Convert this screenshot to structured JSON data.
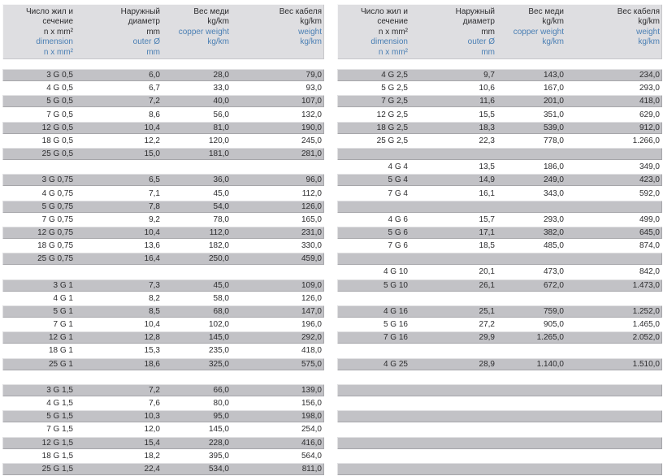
{
  "colors": {
    "row_gray": "#c2c2c6",
    "header_bg": "#dedee1",
    "text": "#2d2d2f",
    "accent_blue": "#4a7fb4"
  },
  "header": {
    "columns": [
      {
        "id": "dimension",
        "black": [
          "Число жил и",
          "сечение",
          "n x mm²"
        ],
        "blue": [
          "dimension",
          "n x mm²"
        ]
      },
      {
        "id": "outer-diameter",
        "black": [
          "Наружный",
          "диаметр",
          "mm"
        ],
        "blue": [
          "outer Ø",
          "mm"
        ]
      },
      {
        "id": "copper-weight",
        "black": [
          "Вес меди",
          "kg/km"
        ],
        "blue": [
          "copper weight",
          "kg/km"
        ]
      },
      {
        "id": "cable-weight",
        "black": [
          "Вес кабеля",
          "kg/km"
        ],
        "blue": [
          "weight",
          "kg/km"
        ]
      }
    ]
  },
  "tables": {
    "left": {
      "rows": [
        {
          "type": "data",
          "shade": "gray",
          "cells": [
            "3 G 0,5",
            "6,0",
            "28,0",
            "79,0"
          ]
        },
        {
          "type": "data",
          "shade": "white",
          "cells": [
            "4 G 0,5",
            "6,7",
            "33,0",
            "93,0"
          ]
        },
        {
          "type": "data",
          "shade": "gray",
          "cells": [
            "5 G 0,5",
            "7,2",
            "40,0",
            "107,0"
          ]
        },
        {
          "type": "data",
          "shade": "white",
          "cells": [
            "7 G 0,5",
            "8,6",
            "56,0",
            "132,0"
          ]
        },
        {
          "type": "data",
          "shade": "gray",
          "cells": [
            "12 G 0,5",
            "10,4",
            "81,0",
            "190,0"
          ]
        },
        {
          "type": "data",
          "shade": "white",
          "cells": [
            "18 G 0,5",
            "12,2",
            "120,0",
            "245,0"
          ]
        },
        {
          "type": "data",
          "shade": "gray",
          "cells": [
            "25 G 0,5",
            "15,0",
            "181,0",
            "281,0"
          ]
        },
        {
          "type": "spacer",
          "shade": "white"
        },
        {
          "type": "data",
          "shade": "gray",
          "cells": [
            "3 G 0,75",
            "6,5",
            "36,0",
            "96,0"
          ]
        },
        {
          "type": "data",
          "shade": "white",
          "cells": [
            "4 G 0,75",
            "7,1",
            "45,0",
            "112,0"
          ]
        },
        {
          "type": "data",
          "shade": "gray",
          "cells": [
            "5 G 0,75",
            "7,8",
            "54,0",
            "126,0"
          ]
        },
        {
          "type": "data",
          "shade": "white",
          "cells": [
            "7 G 0,75",
            "9,2",
            "78,0",
            "165,0"
          ]
        },
        {
          "type": "data",
          "shade": "gray",
          "cells": [
            "12 G 0,75",
            "10,4",
            "112,0",
            "231,0"
          ]
        },
        {
          "type": "data",
          "shade": "white",
          "cells": [
            "18 G 0,75",
            "13,6",
            "182,0",
            "330,0"
          ]
        },
        {
          "type": "data",
          "shade": "gray",
          "cells": [
            "25 G 0,75",
            "16,4",
            "250,0",
            "459,0"
          ]
        },
        {
          "type": "spacer",
          "shade": "white"
        },
        {
          "type": "data",
          "shade": "gray",
          "cells": [
            "3 G 1",
            "7,3",
            "45,0",
            "109,0"
          ]
        },
        {
          "type": "data",
          "shade": "white",
          "cells": [
            "4 G 1",
            "8,2",
            "58,0",
            "126,0"
          ]
        },
        {
          "type": "data",
          "shade": "gray",
          "cells": [
            "5 G 1",
            "8,5",
            "68,0",
            "147,0"
          ]
        },
        {
          "type": "data",
          "shade": "white",
          "cells": [
            "7 G 1",
            "10,4",
            "102,0",
            "196,0"
          ]
        },
        {
          "type": "data",
          "shade": "gray",
          "cells": [
            "12 G 1",
            "12,8",
            "145,0",
            "292,0"
          ]
        },
        {
          "type": "data",
          "shade": "white",
          "cells": [
            "18 G 1",
            "15,3",
            "235,0",
            "418,0"
          ]
        },
        {
          "type": "data",
          "shade": "gray",
          "cells": [
            "25 G 1",
            "18,6",
            "325,0",
            "575,0"
          ]
        },
        {
          "type": "spacer",
          "shade": "white"
        },
        {
          "type": "data",
          "shade": "gray",
          "cells": [
            "3 G 1,5",
            "7,2",
            "66,0",
            "139,0"
          ]
        },
        {
          "type": "data",
          "shade": "white",
          "cells": [
            "4 G 1,5",
            "7,6",
            "80,0",
            "156,0"
          ]
        },
        {
          "type": "data",
          "shade": "gray",
          "cells": [
            "5 G 1,5",
            "10,3",
            "95,0",
            "198,0"
          ]
        },
        {
          "type": "data",
          "shade": "white",
          "cells": [
            "7 G 1,5",
            "12,0",
            "145,0",
            "254,0"
          ]
        },
        {
          "type": "data",
          "shade": "gray",
          "cells": [
            "12 G 1,5",
            "15,4",
            "228,0",
            "416,0"
          ]
        },
        {
          "type": "data",
          "shade": "white",
          "cells": [
            "18 G 1,5",
            "18,2",
            "395,0",
            "564,0"
          ]
        },
        {
          "type": "data",
          "shade": "gray",
          "cells": [
            "25 G 1,5",
            "22,4",
            "534,0",
            "811,0"
          ]
        }
      ]
    },
    "right": {
      "rows": [
        {
          "type": "data",
          "shade": "gray",
          "cells": [
            "4 G 2,5",
            "9,7",
            "143,0",
            "234,0"
          ]
        },
        {
          "type": "data",
          "shade": "white",
          "cells": [
            "5 G 2,5",
            "10,6",
            "167,0",
            "293,0"
          ]
        },
        {
          "type": "data",
          "shade": "gray",
          "cells": [
            "7 G 2,5",
            "11,6",
            "201,0",
            "418,0"
          ]
        },
        {
          "type": "data",
          "shade": "white",
          "cells": [
            "12 G 2,5",
            "15,5",
            "351,0",
            "629,0"
          ]
        },
        {
          "type": "data",
          "shade": "gray",
          "cells": [
            "18 G 2,5",
            "18,3",
            "539,0",
            "912,0"
          ]
        },
        {
          "type": "data",
          "shade": "white",
          "cells": [
            "25 G 2,5",
            "22,3",
            "778,0",
            "1.266,0"
          ]
        },
        {
          "type": "spacer",
          "shade": "gray"
        },
        {
          "type": "data",
          "shade": "white",
          "cells": [
            "4 G 4",
            "13,5",
            "186,0",
            "349,0"
          ]
        },
        {
          "type": "data",
          "shade": "gray",
          "cells": [
            "5 G 4",
            "14,9",
            "249,0",
            "423,0"
          ]
        },
        {
          "type": "data",
          "shade": "white",
          "cells": [
            "7 G 4",
            "16,1",
            "343,0",
            "592,0"
          ]
        },
        {
          "type": "spacer",
          "shade": "gray"
        },
        {
          "type": "data",
          "shade": "white",
          "cells": [
            "4 G 6",
            "15,7",
            "293,0",
            "499,0"
          ]
        },
        {
          "type": "data",
          "shade": "gray",
          "cells": [
            "5 G 6",
            "17,1",
            "382,0",
            "645,0"
          ]
        },
        {
          "type": "data",
          "shade": "white",
          "cells": [
            "7 G 6",
            "18,5",
            "485,0",
            "874,0"
          ]
        },
        {
          "type": "spacer",
          "shade": "gray"
        },
        {
          "type": "data",
          "shade": "white",
          "cells": [
            "4 G 10",
            "20,1",
            "473,0",
            "842,0"
          ]
        },
        {
          "type": "data",
          "shade": "gray",
          "cells": [
            "5 G 10",
            "26,1",
            "672,0",
            "1.473,0"
          ]
        },
        {
          "type": "spacer",
          "shade": "white"
        },
        {
          "type": "data",
          "shade": "gray",
          "cells": [
            "4 G 16",
            "25,1",
            "759,0",
            "1.252,0"
          ]
        },
        {
          "type": "data",
          "shade": "white",
          "cells": [
            "5 G 16",
            "27,2",
            "905,0",
            "1.465,0"
          ]
        },
        {
          "type": "data",
          "shade": "gray",
          "cells": [
            "7 G 16",
            "29,9",
            "1.265,0",
            "2.052,0"
          ]
        },
        {
          "type": "spacer",
          "shade": "white"
        },
        {
          "type": "data",
          "shade": "gray",
          "cells": [
            "4 G 25",
            "28,9",
            "1.140,0",
            "1.510,0"
          ]
        },
        {
          "type": "spacer",
          "shade": "white"
        },
        {
          "type": "spacer",
          "shade": "gray"
        },
        {
          "type": "spacer",
          "shade": "white"
        },
        {
          "type": "spacer",
          "shade": "gray"
        },
        {
          "type": "spacer",
          "shade": "white"
        },
        {
          "type": "spacer",
          "shade": "gray"
        },
        {
          "type": "spacer",
          "shade": "white"
        },
        {
          "type": "spacer",
          "shade": "gray"
        }
      ]
    }
  }
}
